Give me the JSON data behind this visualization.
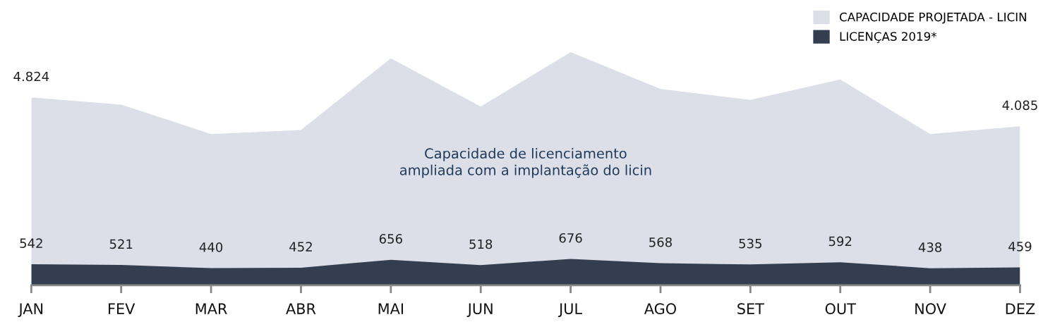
{
  "chart_data": {
    "type": "area",
    "categories": [
      "JAN",
      "FEV",
      "MAR",
      "ABR",
      "MAI",
      "JUN",
      "JUL",
      "AGO",
      "SET",
      "OUT",
      "NOV",
      "DEZ"
    ],
    "series": [
      {
        "name": "CAPACIDADE PROJETADA - LICIN",
        "color": "#dcdfe8",
        "values": [
          4824,
          4640,
          3885,
          3990,
          5830,
          4590,
          5985,
          5040,
          4760,
          5285,
          3885,
          4085
        ],
        "value_labels": [
          "4.824",
          null,
          null,
          null,
          null,
          null,
          null,
          null,
          null,
          null,
          null,
          "4.085"
        ]
      },
      {
        "name": "LICENÇAS 2019*",
        "color": "#333f50",
        "values": [
          542,
          521,
          440,
          452,
          656,
          518,
          676,
          568,
          535,
          592,
          438,
          459
        ],
        "value_labels": [
          "542",
          "521",
          "440",
          "452",
          "656",
          "518",
          "676",
          "568",
          "535",
          "592",
          "438",
          "459"
        ]
      }
    ],
    "annotations": [
      "Capacidade de licenciamento\nampliada com a implantação do licin"
    ],
    "legend": "top right",
    "grid": false
  }
}
